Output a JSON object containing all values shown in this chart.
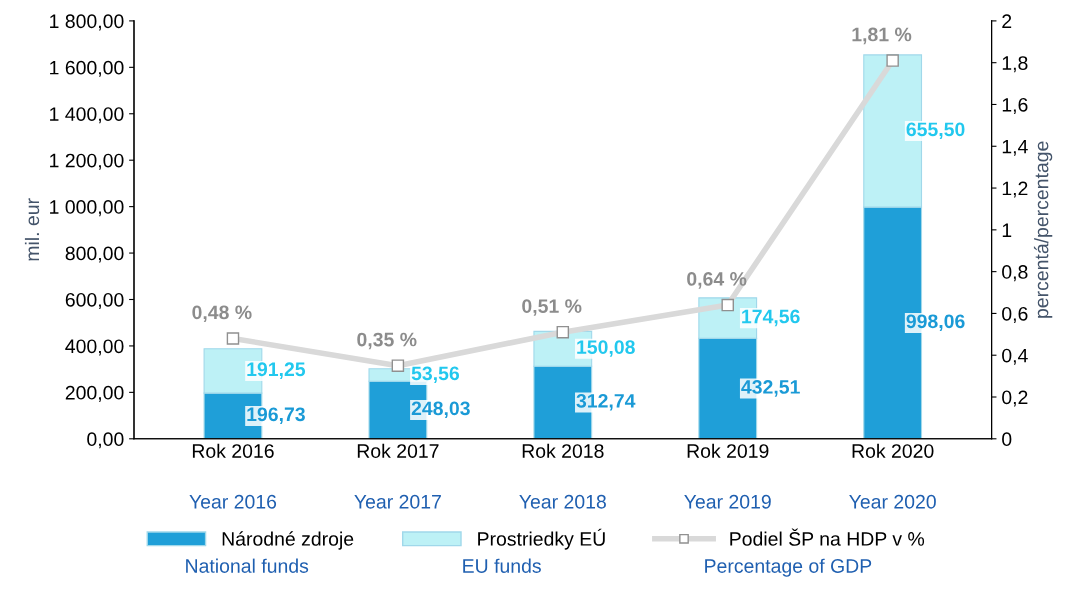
{
  "chart_data": {
    "type": "bar",
    "stacked": true,
    "categories": [
      "Rok 2016",
      "Rok 2017",
      "Rok 2018",
      "Rok 2019",
      "Rok 2020"
    ],
    "series": [
      {
        "name": "Národné zdroje",
        "color": "#1f9fd8",
        "values": [
          196.73,
          248.03,
          312.74,
          432.51,
          998.06
        ],
        "value_labels": [
          "196,73",
          "248,03",
          "312,74",
          "432,51",
          "998,06"
        ]
      },
      {
        "name": "Prostriedky EÚ",
        "color": "#bdf1f6",
        "values": [
          191.25,
          53.56,
          150.08,
          174.56,
          655.5
        ],
        "value_labels": [
          "191,25",
          "53,56",
          "150,08",
          "174,56",
          "655,50"
        ]
      },
      {
        "name": "Podiel ŠP na HDP v %",
        "type": "line",
        "axis": "y2",
        "color": "#d9d9d9",
        "marker": "square",
        "values": [
          0.48,
          0.35,
          0.51,
          0.64,
          1.81
        ],
        "value_labels": [
          "0,48 %",
          "0,35 %",
          "0,51 %",
          "0,64 %",
          "1,81 %"
        ]
      }
    ],
    "ylabel": "mil. eur",
    "y2label": "percentá/percentage",
    "ylim": [
      0,
      1800
    ],
    "yticks": [
      {
        "value": 0,
        "label": "0,00"
      },
      {
        "value": 200,
        "label": "200,00"
      },
      {
        "value": 400,
        "label": "400,00"
      },
      {
        "value": 600,
        "label": "600,00"
      },
      {
        "value": 800,
        "label": "800,00"
      },
      {
        "value": 1000,
        "label": "1 000,00"
      },
      {
        "value": 1200,
        "label": "1 200,00"
      },
      {
        "value": 1400,
        "label": "1 400,00"
      },
      {
        "value": 1600,
        "label": "1 600,00"
      },
      {
        "value": 1800,
        "label": "1 800,00"
      }
    ],
    "y2lim": [
      0,
      2
    ],
    "y2ticks": [
      0,
      {
        "value": 0.2,
        "label": "0,2"
      },
      {
        "value": 0.4,
        "label": "0,4"
      },
      {
        "value": 0.6,
        "label": "0,6"
      },
      {
        "value": 0.8,
        "label": "0,8"
      },
      1,
      {
        "value": 1.2,
        "label": "1,2"
      },
      {
        "value": 1.4,
        "label": "1,4"
      },
      {
        "value": 1.6,
        "label": "1,6"
      },
      {
        "value": 1.8,
        "label": "1,8"
      },
      2
    ],
    "grid": false,
    "legend": "bottom",
    "annotations": [
      "Year 2016",
      "Year 2017",
      "Year 2018",
      "Year 2019",
      "Year 2020",
      "National funds",
      "EU funds",
      "Percentage of GDP"
    ]
  }
}
